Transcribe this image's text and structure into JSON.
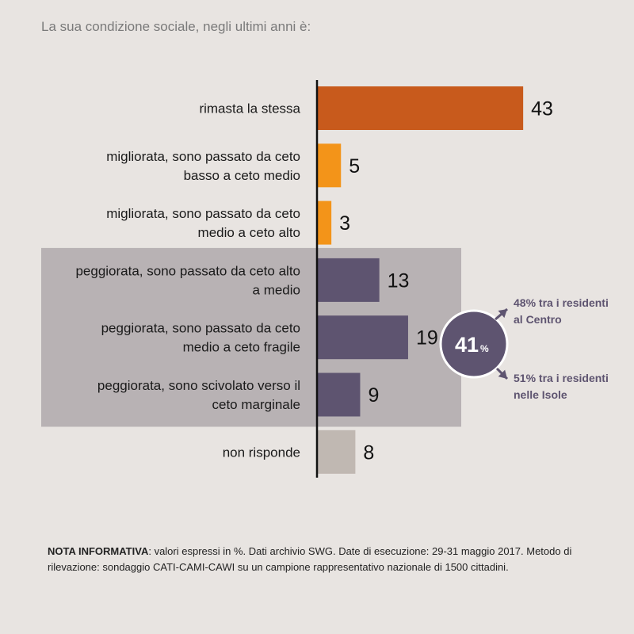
{
  "title": "La sua condizione sociale, negli ultimi anni è:",
  "chart_data": {
    "type": "bar",
    "orientation": "horizontal",
    "unit": "%",
    "categories": [
      [
        "rimasta la stessa"
      ],
      [
        "migliorata, sono passato da ceto",
        "basso a ceto medio"
      ],
      [
        "migliorata, sono passato da ceto",
        "medio a ceto alto"
      ],
      [
        "peggiorata, sono passato da ceto alto",
        "a medio"
      ],
      [
        "peggiorata, sono passato da ceto",
        "medio a ceto fragile"
      ],
      [
        "peggiorata, sono scivolato verso il",
        "ceto marginale"
      ],
      [
        "non risponde"
      ]
    ],
    "values": [
      43,
      5,
      3,
      13,
      19,
      9,
      8
    ],
    "colors": [
      "#c85a1c",
      "#f39419",
      "#f39419",
      "#5e5470",
      "#5e5470",
      "#5e5470",
      "#c0b8b2"
    ],
    "highlight_box_color": "#b8b2b4",
    "highlight_group": [
      3,
      4,
      5
    ],
    "group_total": {
      "value": "41",
      "unit": "%"
    },
    "annotations": [
      [
        "48% tra i residenti",
        "al Centro"
      ],
      [
        "51% tra i residenti",
        "nelle Isole"
      ]
    ]
  },
  "note": {
    "label": "NOTA INFORMATIVA",
    "text": ": valori espressi in %. Dati archivio SWG. Date di esecuzione: 29-31 maggio 2017. Metodo di rilevazione: sondaggio CATI-CAMI-CAWI su un campione rappresentativo nazionale di 1500 cittadini."
  }
}
